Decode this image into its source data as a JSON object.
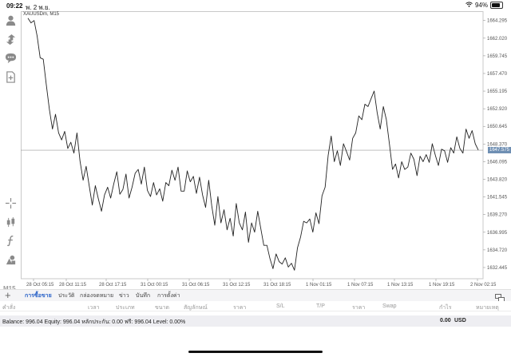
{
  "status_bar": {
    "time": "09:22",
    "date": "พ. 2 พ.ย.",
    "battery_percent": "94%",
    "battery_level": 0.94
  },
  "chart": {
    "symbol_label": "XAUUSDm, M15",
    "current_price": "1647.575",
    "timeframe_label": "M15",
    "line_color": "#222222",
    "price_tag_color": "#6f8fb3"
  },
  "chart_data": {
    "type": "line",
    "ylim": [
      1631.0,
      1665.5
    ],
    "y_ticks": [
      "1664.295",
      "1662.020",
      "1659.745",
      "1657.470",
      "1655.195",
      "1652.920",
      "1650.645",
      "1648.370",
      "1646.095",
      "1643.820",
      "1641.545",
      "1639.270",
      "1636.995",
      "1634.720",
      "1632.445"
    ],
    "y_tick_values": [
      1664.295,
      1662.02,
      1659.745,
      1657.47,
      1655.195,
      1652.92,
      1650.645,
      1648.37,
      1646.095,
      1643.82,
      1641.545,
      1639.27,
      1636.995,
      1634.72,
      1632.445
    ],
    "x_ticks": [
      "28 Oct 05:15",
      "28 Oct 11:15",
      "28 Oct 17:15",
      "31 Oct 00:15",
      "31 Oct 06:15",
      "31 Oct 12:15",
      "31 Oct 18:15",
      "1 Nov 01:15",
      "1 Nov 07:15",
      "1 Nov 13:15",
      "1 Nov 19:15",
      "2 Nov 02:15"
    ],
    "current_price": 1647.575,
    "values": [
      1664.6,
      1664.0,
      1664.3,
      1662.3,
      1659.5,
      1659.3,
      1656.0,
      1652.8,
      1650.3,
      1652.2,
      1649.8,
      1648.9,
      1650.0,
      1647.8,
      1648.6,
      1647.2,
      1649.8,
      1646.2,
      1643.7,
      1645.5,
      1643.0,
      1640.5,
      1643.0,
      1641.3,
      1639.7,
      1641.8,
      1642.8,
      1641.4,
      1643.2,
      1644.8,
      1641.9,
      1642.5,
      1644.5,
      1641.4,
      1642.8,
      1644.6,
      1645.1,
      1643.2,
      1645.4,
      1642.4,
      1641.6,
      1643.4,
      1641.8,
      1642.6,
      1641.0,
      1643.4,
      1643.0,
      1645.0,
      1643.7,
      1645.4,
      1642.3,
      1642.3,
      1644.9,
      1643.5,
      1644.2,
      1642.0,
      1644.1,
      1641.8,
      1640.2,
      1643.7,
      1640.4,
      1637.9,
      1641.6,
      1638.2,
      1639.9,
      1637.3,
      1638.8,
      1636.5,
      1640.7,
      1638.2,
      1637.3,
      1639.6,
      1635.7,
      1638.2,
      1637.0,
      1639.7,
      1637.5,
      1635.3,
      1635.3,
      1633.6,
      1632.3,
      1634.2,
      1633.2,
      1632.9,
      1633.7,
      1632.5,
      1633.0,
      1632.1,
      1635.0,
      1636.4,
      1638.4,
      1638.2,
      1638.7,
      1637.0,
      1639.5,
      1638.1,
      1641.7,
      1642.8,
      1646.9,
      1649.4,
      1646.1,
      1647.5,
      1645.6,
      1648.4,
      1647.4,
      1646.3,
      1649.1,
      1649.8,
      1652.0,
      1651.5,
      1653.5,
      1653.2,
      1654.2,
      1655.2,
      1652.4,
      1650.3,
      1653.2,
      1651.5,
      1648.4,
      1645.1,
      1645.8,
      1644.0,
      1646.1,
      1645.1,
      1645.4,
      1647.2,
      1646.4,
      1644.3,
      1646.8,
      1646.1,
      1647.0,
      1646.0,
      1648.4,
      1646.9,
      1645.6,
      1647.7,
      1647.5,
      1646.0,
      1647.9,
      1647.2,
      1649.3,
      1647.8,
      1647.2,
      1650.3,
      1649.1,
      1650.1,
      1648.4,
      1647.6
    ]
  },
  "tabs": {
    "add_label": "+",
    "items": [
      {
        "label": "การซื้อขาย"
      },
      {
        "label": "ประวัติ"
      },
      {
        "label": "กล่องจดหมาย"
      },
      {
        "label": "ข่าว"
      },
      {
        "label": "บันทึก"
      },
      {
        "label": "การตั้งค่า"
      }
    ]
  },
  "columns": [
    "คำสั่ง",
    "เวลา",
    "ประเภท",
    "ขนาด",
    "สัญลักษณ์",
    "ราคา",
    "S/L",
    "T/P",
    "ราคา",
    "Swap",
    "กำไร",
    "หมายเหตุ"
  ],
  "balance": {
    "text": "Balance: 996.04 Equity: 996.04 หลักประกัน: 0.00 ฟรี: 996.04 Level: 0.00%",
    "profit": "0.00",
    "currency": "USD"
  },
  "icons": {
    "toolbar": [
      "user-icon",
      "trade-arrows-icon",
      "chat-icon",
      "new-chart-icon",
      "crosshair-icon",
      "candlestick-icon",
      "function-icon",
      "objects-icon"
    ],
    "config": "chart-config-icon"
  }
}
